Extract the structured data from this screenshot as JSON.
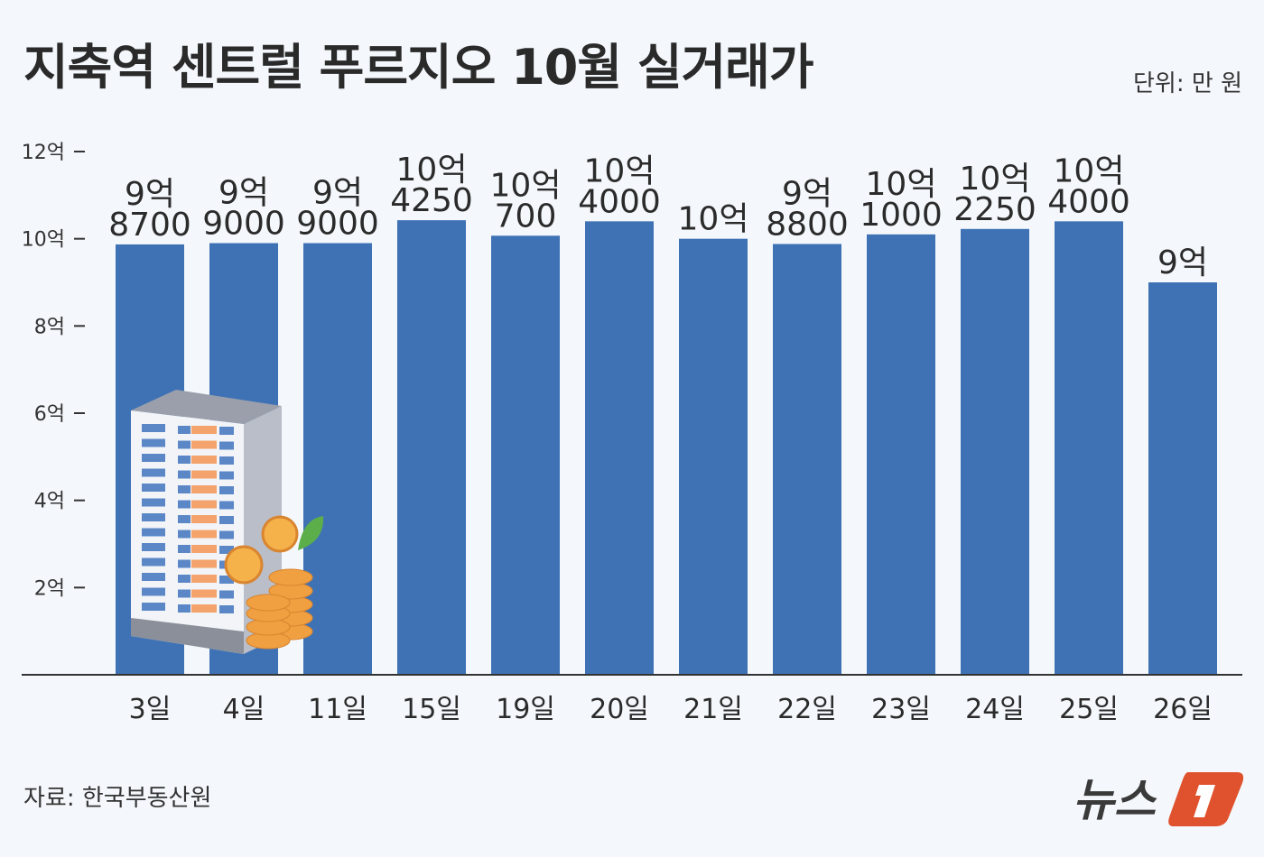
{
  "title": "지축역 센트럴 푸르지오 10월 실거래가",
  "unit": "단위: 만 원",
  "source": "자료: 한국부동산원",
  "logo_text": "뉴스1",
  "colors": {
    "bar": "#3f72b5",
    "logo_accent": "#e0522e",
    "background": "#f4f8fc"
  },
  "chart_data": {
    "type": "bar",
    "title": "지축역 센트럴 푸르지오 10월 실거래가",
    "ylabel": "",
    "xlabel": "",
    "unit": "만 원",
    "ylim": [
      0,
      120000
    ],
    "yticks": [
      {
        "value": 20000,
        "label": "2억"
      },
      {
        "value": 40000,
        "label": "4억"
      },
      {
        "value": 60000,
        "label": "6억"
      },
      {
        "value": 80000,
        "label": "8억"
      },
      {
        "value": 100000,
        "label": "10억"
      },
      {
        "value": 120000,
        "label": "12억"
      }
    ],
    "grid": false,
    "categories": [
      "3일",
      "4일",
      "11일",
      "15일",
      "19일",
      "20일",
      "21일",
      "22일",
      "23일",
      "24일",
      "25일",
      "26일"
    ],
    "values": [
      98700,
      99000,
      99000,
      104250,
      100700,
      104000,
      100000,
      98800,
      101000,
      102250,
      104000,
      90000
    ],
    "data_labels": [
      [
        "9억",
        "8700"
      ],
      [
        "9억",
        "9000"
      ],
      [
        "9억",
        "9000"
      ],
      [
        "10억",
        "4250"
      ],
      [
        "10억",
        "700"
      ],
      [
        "10억",
        "4000"
      ],
      [
        "10억"
      ],
      [
        "9억",
        "8800"
      ],
      [
        "10억",
        "1000"
      ],
      [
        "10억",
        "2250"
      ],
      [
        "10억",
        "4000"
      ],
      [
        "9억"
      ]
    ]
  }
}
